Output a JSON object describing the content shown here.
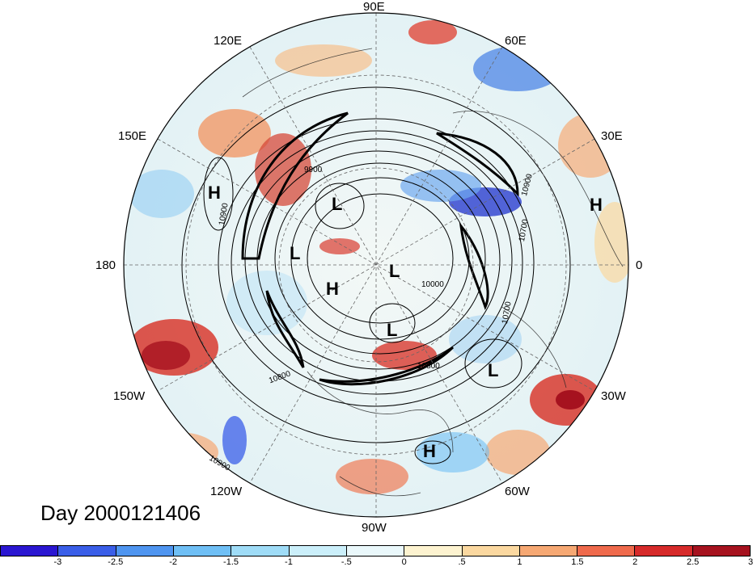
{
  "map": {
    "projection": "north-polar-stereographic",
    "longitude_labels": [
      "90E",
      "60E",
      "120E",
      "30E",
      "150E",
      "0",
      "180",
      "30W",
      "150W",
      "60W",
      "120W",
      "90W"
    ],
    "pressure_centers": [
      "H",
      "L",
      "L",
      "H",
      "L",
      "H",
      "L",
      "L",
      "H"
    ],
    "contour_labels": [
      "10900",
      "9900",
      "10700",
      "10900",
      "10000",
      "10700",
      "10800",
      "10800",
      "10900"
    ]
  },
  "title": {
    "day": "Day 2000121406"
  },
  "colorbar": {
    "ticks": [
      "-3",
      "-2.5",
      "-2",
      "-1.5",
      "-1",
      "-.5",
      "0",
      ".5",
      "1",
      "1.5",
      "2",
      "2.5",
      "3"
    ],
    "colors": [
      "#2a16d1",
      "#3a5ee8",
      "#4f95f0",
      "#6fbff5",
      "#9fdcf7",
      "#cbeffa",
      "#eaf8fb",
      "#fdf3d0",
      "#fbd8a0",
      "#f6a873",
      "#ef6a4c",
      "#d62a2a",
      "#a6121f"
    ]
  }
}
